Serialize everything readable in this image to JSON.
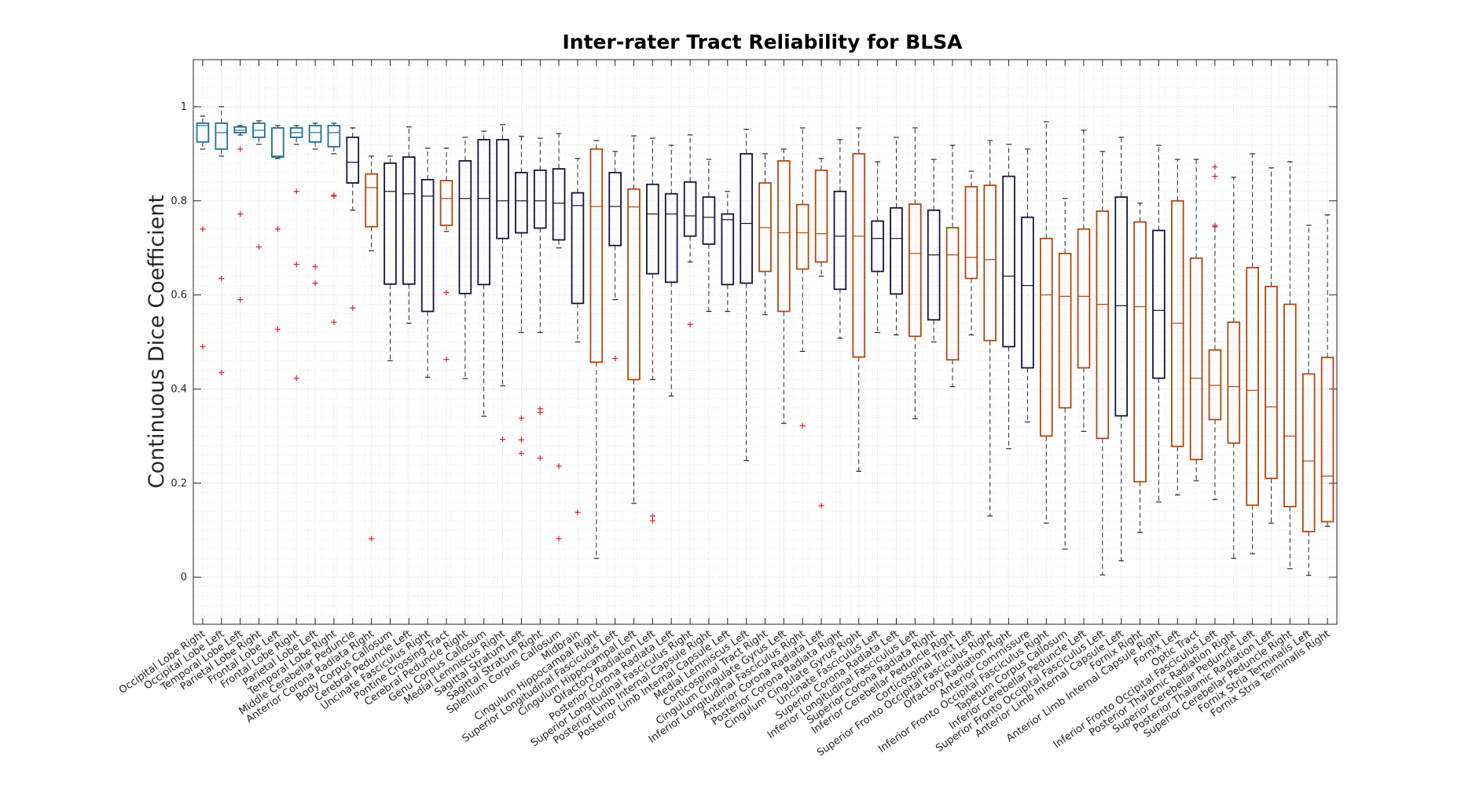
{
  "chart_data": {
    "type": "box",
    "title": "Inter-rater Tract Reliability for BLSA",
    "ylabel": "Continuous Dice Coefficient",
    "xlabel": "",
    "ylim": [
      -0.1,
      1.1
    ],
    "yticks": [
      0,
      0.2,
      0.4,
      0.6,
      0.8,
      1
    ],
    "ytick_labels": [
      "0",
      "0.2",
      "0.4",
      "0.6",
      "0.8",
      "1"
    ],
    "grid": true,
    "colors": {
      "teal": "#1f6f9c",
      "navy": "#14143c",
      "orange": "#b4470f",
      "outlier": "#e8262d",
      "whisker": "#2a2a2a"
    },
    "boxes": [
      {
        "label": "Occipital Lobe Right",
        "color": "teal",
        "q1": 0.925,
        "median": 0.96,
        "q3": 0.965,
        "whisker_low": 0.91,
        "whisker_high": 0.98,
        "outliers": [
          0.74,
          0.49
        ]
      },
      {
        "label": "Occipital Lobe Left",
        "color": "teal",
        "q1": 0.91,
        "median": 0.945,
        "q3": 0.965,
        "whisker_low": 0.895,
        "whisker_high": 1.0,
        "outliers": [
          0.635,
          0.435
        ]
      },
      {
        "label": "Temporal Lobe Left",
        "color": "teal",
        "q1": 0.945,
        "median": 0.95,
        "q3": 0.957,
        "whisker_low": 0.94,
        "whisker_high": 0.96,
        "outliers": [
          0.91,
          0.772,
          0.59
        ]
      },
      {
        "label": "Parietal Lobe Right",
        "color": "teal",
        "q1": 0.935,
        "median": 0.95,
        "q3": 0.965,
        "whisker_low": 0.92,
        "whisker_high": 0.97,
        "outliers": [
          0.702
        ]
      },
      {
        "label": "Frontal Lobe Left",
        "color": "teal",
        "q1": 0.893,
        "median": 0.895,
        "q3": 0.955,
        "whisker_low": 0.89,
        "whisker_high": 0.96,
        "outliers": [
          0.74,
          0.527
        ]
      },
      {
        "label": "Frontal Lobe Right",
        "color": "teal",
        "q1": 0.935,
        "median": 0.945,
        "q3": 0.955,
        "whisker_low": 0.92,
        "whisker_high": 0.96,
        "outliers": [
          0.82,
          0.665,
          0.423
        ]
      },
      {
        "label": "Parietal Lobe Left",
        "color": "teal",
        "q1": 0.925,
        "median": 0.945,
        "q3": 0.96,
        "whisker_low": 0.91,
        "whisker_high": 0.965,
        "outliers": [
          0.66,
          0.625
        ]
      },
      {
        "label": "Temporal Lobe Right",
        "color": "teal",
        "q1": 0.915,
        "median": 0.945,
        "q3": 0.96,
        "whisker_low": 0.9,
        "whisker_high": 0.965,
        "outliers": [
          0.812,
          0.81,
          0.542
        ]
      },
      {
        "label": "Middle Cerebellar Peduncle",
        "color": "navy",
        "q1": 0.838,
        "median": 0.882,
        "q3": 0.935,
        "whisker_low": 0.78,
        "whisker_high": 0.955,
        "outliers": [
          0.572
        ]
      },
      {
        "label": "Anterior Corona Radiata Right",
        "color": "orange",
        "q1": 0.745,
        "median": 0.828,
        "q3": 0.857,
        "whisker_low": 0.694,
        "whisker_high": 0.895,
        "outliers": [
          0.082
        ]
      },
      {
        "label": "Body Corpus Callosum",
        "color": "navy",
        "q1": 0.623,
        "median": 0.82,
        "q3": 0.88,
        "whisker_low": 0.46,
        "whisker_high": 0.895,
        "outliers": []
      },
      {
        "label": "Cerebral Peduncle Left",
        "color": "navy",
        "q1": 0.623,
        "median": 0.815,
        "q3": 0.893,
        "whisker_low": 0.54,
        "whisker_high": 0.957,
        "outliers": []
      },
      {
        "label": "Uncinate Fasciculus Right",
        "color": "navy",
        "q1": 0.565,
        "median": 0.81,
        "q3": 0.845,
        "whisker_low": 0.425,
        "whisker_high": 0.912,
        "outliers": []
      },
      {
        "label": "Pontine Crossing Tract",
        "color": "orange",
        "q1": 0.748,
        "median": 0.805,
        "q3": 0.843,
        "whisker_low": 0.735,
        "whisker_high": 0.912,
        "outliers": [
          0.605,
          0.463
        ]
      },
      {
        "label": "Cerebral Peduncle Right",
        "color": "navy",
        "q1": 0.603,
        "median": 0.805,
        "q3": 0.885,
        "whisker_low": 0.422,
        "whisker_high": 0.935,
        "outliers": []
      },
      {
        "label": "Genu Corpus Callosum",
        "color": "navy",
        "q1": 0.622,
        "median": 0.805,
        "q3": 0.93,
        "whisker_low": 0.342,
        "whisker_high": 0.948,
        "outliers": []
      },
      {
        "label": "Medial Lemniscus Right",
        "color": "navy",
        "q1": 0.72,
        "median": 0.8,
        "q3": 0.93,
        "whisker_low": 0.407,
        "whisker_high": 0.962,
        "outliers": [
          0.293
        ]
      },
      {
        "label": "Sagittal Stratum Left",
        "color": "navy",
        "q1": 0.732,
        "median": 0.8,
        "q3": 0.86,
        "whisker_low": 0.52,
        "whisker_high": 0.937,
        "outliers": [
          0.338,
          0.292,
          0.263
        ]
      },
      {
        "label": "Sagittal Stratum Right",
        "color": "navy",
        "q1": 0.742,
        "median": 0.8,
        "q3": 0.865,
        "whisker_low": 0.52,
        "whisker_high": 0.933,
        "outliers": [
          0.358,
          0.35,
          0.253
        ]
      },
      {
        "label": "Splenium Corpus Callosum",
        "color": "navy",
        "q1": 0.717,
        "median": 0.795,
        "q3": 0.868,
        "whisker_low": 0.7,
        "whisker_high": 0.943,
        "outliers": [
          0.236,
          0.082
        ]
      },
      {
        "label": "Midbrain",
        "color": "navy",
        "q1": 0.582,
        "median": 0.79,
        "q3": 0.817,
        "whisker_low": 0.5,
        "whisker_high": 0.89,
        "outliers": [
          0.138
        ]
      },
      {
        "label": "Cingulum Hippocampal Right",
        "color": "orange",
        "q1": 0.457,
        "median": 0.788,
        "q3": 0.91,
        "whisker_low": 0.04,
        "whisker_high": 0.928,
        "outliers": []
      },
      {
        "label": "Superior Longitudinal Fasciculus Left",
        "color": "navy",
        "q1": 0.705,
        "median": 0.788,
        "q3": 0.86,
        "whisker_low": 0.59,
        "whisker_high": 0.905,
        "outliers": [
          0.465
        ]
      },
      {
        "label": "Cingulum Hippocampal Left",
        "color": "orange",
        "q1": 0.42,
        "median": 0.787,
        "q3": 0.825,
        "whisker_low": 0.157,
        "whisker_high": 0.938,
        "outliers": []
      },
      {
        "label": "Olfactory Radiation Left",
        "color": "navy",
        "q1": 0.645,
        "median": 0.772,
        "q3": 0.835,
        "whisker_low": 0.42,
        "whisker_high": 0.933,
        "outliers": [
          0.13,
          0.12
        ]
      },
      {
        "label": "Posterior Corona Radiata Left",
        "color": "navy",
        "q1": 0.627,
        "median": 0.772,
        "q3": 0.815,
        "whisker_low": 0.385,
        "whisker_high": 0.918,
        "outliers": []
      },
      {
        "label": "Superior Longitudinal Fasciculus Right",
        "color": "navy",
        "q1": 0.725,
        "median": 0.768,
        "q3": 0.84,
        "whisker_low": 0.67,
        "whisker_high": 0.94,
        "outliers": [
          0.537
        ]
      },
      {
        "label": "Posterior Limb Internal Capsule Right",
        "color": "navy",
        "q1": 0.708,
        "median": 0.765,
        "q3": 0.808,
        "whisker_low": 0.565,
        "whisker_high": 0.888,
        "outliers": []
      },
      {
        "label": "Posterior Limb Internal Capsule Left",
        "color": "navy",
        "q1": 0.622,
        "median": 0.76,
        "q3": 0.772,
        "whisker_low": 0.565,
        "whisker_high": 0.82,
        "outliers": []
      },
      {
        "label": "Medial Lemniscus Left",
        "color": "navy",
        "q1": 0.625,
        "median": 0.752,
        "q3": 0.9,
        "whisker_low": 0.248,
        "whisker_high": 0.952,
        "outliers": []
      },
      {
        "label": "Corticospinal Tract Right",
        "color": "orange",
        "q1": 0.65,
        "median": 0.743,
        "q3": 0.838,
        "whisker_low": 0.558,
        "whisker_high": 0.9,
        "outliers": []
      },
      {
        "label": "Cingulum Cingulate Gyrus Left",
        "color": "orange",
        "q1": 0.565,
        "median": 0.732,
        "q3": 0.885,
        "whisker_low": 0.327,
        "whisker_high": 0.91,
        "outliers": []
      },
      {
        "label": "Inferior Longitudinal Fasciculus Right",
        "color": "orange",
        "q1": 0.655,
        "median": 0.732,
        "q3": 0.792,
        "whisker_low": 0.48,
        "whisker_high": 0.955,
        "outliers": [
          0.322
        ]
      },
      {
        "label": "Anterior Corona Radiata Left",
        "color": "orange",
        "q1": 0.67,
        "median": 0.73,
        "q3": 0.865,
        "whisker_low": 0.64,
        "whisker_high": 0.89,
        "outliers": [
          0.152
        ]
      },
      {
        "label": "Posterior Corona Radiata Right",
        "color": "navy",
        "q1": 0.612,
        "median": 0.725,
        "q3": 0.82,
        "whisker_low": 0.508,
        "whisker_high": 0.93,
        "outliers": []
      },
      {
        "label": "Cingulum Cingulate Gyrus Right",
        "color": "orange",
        "q1": 0.468,
        "median": 0.725,
        "q3": 0.9,
        "whisker_low": 0.225,
        "whisker_high": 0.955,
        "outliers": []
      },
      {
        "label": "Uncinate Fasciculus Left",
        "color": "navy",
        "q1": 0.65,
        "median": 0.72,
        "q3": 0.757,
        "whisker_low": 0.52,
        "whisker_high": 0.883,
        "outliers": []
      },
      {
        "label": "Superior Corona Radiata Left",
        "color": "navy",
        "q1": 0.602,
        "median": 0.72,
        "q3": 0.785,
        "whisker_low": 0.515,
        "whisker_high": 0.935,
        "outliers": []
      },
      {
        "label": "Inferior Longitudinal Fasciculus Left",
        "color": "orange",
        "q1": 0.512,
        "median": 0.688,
        "q3": 0.793,
        "whisker_low": 0.337,
        "whisker_high": 0.955,
        "outliers": []
      },
      {
        "label": "Superior Corona Radiata Right",
        "color": "navy",
        "q1": 0.547,
        "median": 0.685,
        "q3": 0.78,
        "whisker_low": 0.5,
        "whisker_high": 0.888,
        "outliers": []
      },
      {
        "label": "Inferior Cerebellar Peduncle Right",
        "color": "orange",
        "q1": 0.462,
        "median": 0.685,
        "q3": 0.743,
        "whisker_low": 0.405,
        "whisker_high": 0.918,
        "outliers": []
      },
      {
        "label": "Corticospinal Tract Left",
        "color": "orange",
        "q1": 0.635,
        "median": 0.68,
        "q3": 0.83,
        "whisker_low": 0.515,
        "whisker_high": 0.863,
        "outliers": []
      },
      {
        "label": "Superior Fronto Occipital Fasciculus Right",
        "color": "orange",
        "q1": 0.503,
        "median": 0.675,
        "q3": 0.833,
        "whisker_low": 0.13,
        "whisker_high": 0.928,
        "outliers": []
      },
      {
        "label": "Olfactory Radiation Right",
        "color": "navy",
        "q1": 0.49,
        "median": 0.64,
        "q3": 0.852,
        "whisker_low": 0.273,
        "whisker_high": 0.92,
        "outliers": []
      },
      {
        "label": "Anterior Commissure",
        "color": "navy",
        "q1": 0.445,
        "median": 0.62,
        "q3": 0.765,
        "whisker_low": 0.33,
        "whisker_high": 0.91,
        "outliers": []
      },
      {
        "label": "Inferior Fronto Occipital Fasciculus Right",
        "color": "orange",
        "q1": 0.3,
        "median": 0.6,
        "q3": 0.72,
        "whisker_low": 0.115,
        "whisker_high": 0.968,
        "outliers": []
      },
      {
        "label": "Tapetum Corpus Callosum",
        "color": "orange",
        "q1": 0.36,
        "median": 0.597,
        "q3": 0.688,
        "whisker_low": 0.06,
        "whisker_high": 0.805,
        "outliers": []
      },
      {
        "label": "Inferior Cerebellar Peduncle Left",
        "color": "orange",
        "q1": 0.445,
        "median": 0.597,
        "q3": 0.74,
        "whisker_low": 0.31,
        "whisker_high": 0.95,
        "outliers": []
      },
      {
        "label": "Superior Fronto Occipital Fasciculus Left",
        "color": "orange",
        "q1": 0.295,
        "median": 0.58,
        "q3": 0.778,
        "whisker_low": 0.005,
        "whisker_high": 0.905,
        "outliers": []
      },
      {
        "label": "Anterior Limb Internal Capsule Left",
        "color": "navy",
        "q1": 0.343,
        "median": 0.577,
        "q3": 0.808,
        "whisker_low": 0.035,
        "whisker_high": 0.935,
        "outliers": []
      },
      {
        "label": "Fornix Right",
        "color": "orange",
        "q1": 0.203,
        "median": 0.575,
        "q3": 0.755,
        "whisker_low": 0.095,
        "whisker_high": 0.795,
        "outliers": []
      },
      {
        "label": "Anterior Limb Internal Capsule Right",
        "color": "navy",
        "q1": 0.423,
        "median": 0.567,
        "q3": 0.737,
        "whisker_low": 0.16,
        "whisker_high": 0.918,
        "outliers": []
      },
      {
        "label": "Fornix Left",
        "color": "orange",
        "q1": 0.278,
        "median": 0.54,
        "q3": 0.8,
        "whisker_low": 0.175,
        "whisker_high": 0.888,
        "outliers": []
      },
      {
        "label": "Optic Tract",
        "color": "orange",
        "q1": 0.25,
        "median": 0.423,
        "q3": 0.678,
        "whisker_low": 0.205,
        "whisker_high": 0.888,
        "outliers": []
      },
      {
        "label": "Inferior Fronto Occipital Fasciculus Left",
        "color": "orange",
        "q1": 0.335,
        "median": 0.408,
        "q3": 0.483,
        "whisker_low": 0.165,
        "whisker_high": 0.745,
        "outliers": [
          0.872,
          0.852,
          0.748
        ]
      },
      {
        "label": "Posterior Thalamic Radiation Right",
        "color": "orange",
        "q1": 0.285,
        "median": 0.405,
        "q3": 0.542,
        "whisker_low": 0.04,
        "whisker_high": 0.85,
        "outliers": []
      },
      {
        "label": "Superior Cerebellar Peduncle Left",
        "color": "orange",
        "q1": 0.153,
        "median": 0.397,
        "q3": 0.658,
        "whisker_low": 0.05,
        "whisker_high": 0.9,
        "outliers": []
      },
      {
        "label": "Posterior Thalamic Radiation Left",
        "color": "orange",
        "q1": 0.21,
        "median": 0.362,
        "q3": 0.618,
        "whisker_low": 0.115,
        "whisker_high": 0.87,
        "outliers": []
      },
      {
        "label": "Superior Cerebellar Peduncle Right",
        "color": "orange",
        "q1": 0.15,
        "median": 0.3,
        "q3": 0.58,
        "whisker_low": 0.018,
        "whisker_high": 0.883,
        "outliers": []
      },
      {
        "label": "Fornix Stria Terminalis Left",
        "color": "orange",
        "q1": 0.097,
        "median": 0.247,
        "q3": 0.432,
        "whisker_low": 0.004,
        "whisker_high": 0.748,
        "outliers": []
      },
      {
        "label": "Fornix Stria Terminalis Right",
        "color": "orange",
        "q1": 0.118,
        "median": 0.215,
        "q3": 0.467,
        "whisker_low": 0.108,
        "whisker_high": 0.77,
        "outliers": []
      }
    ]
  }
}
